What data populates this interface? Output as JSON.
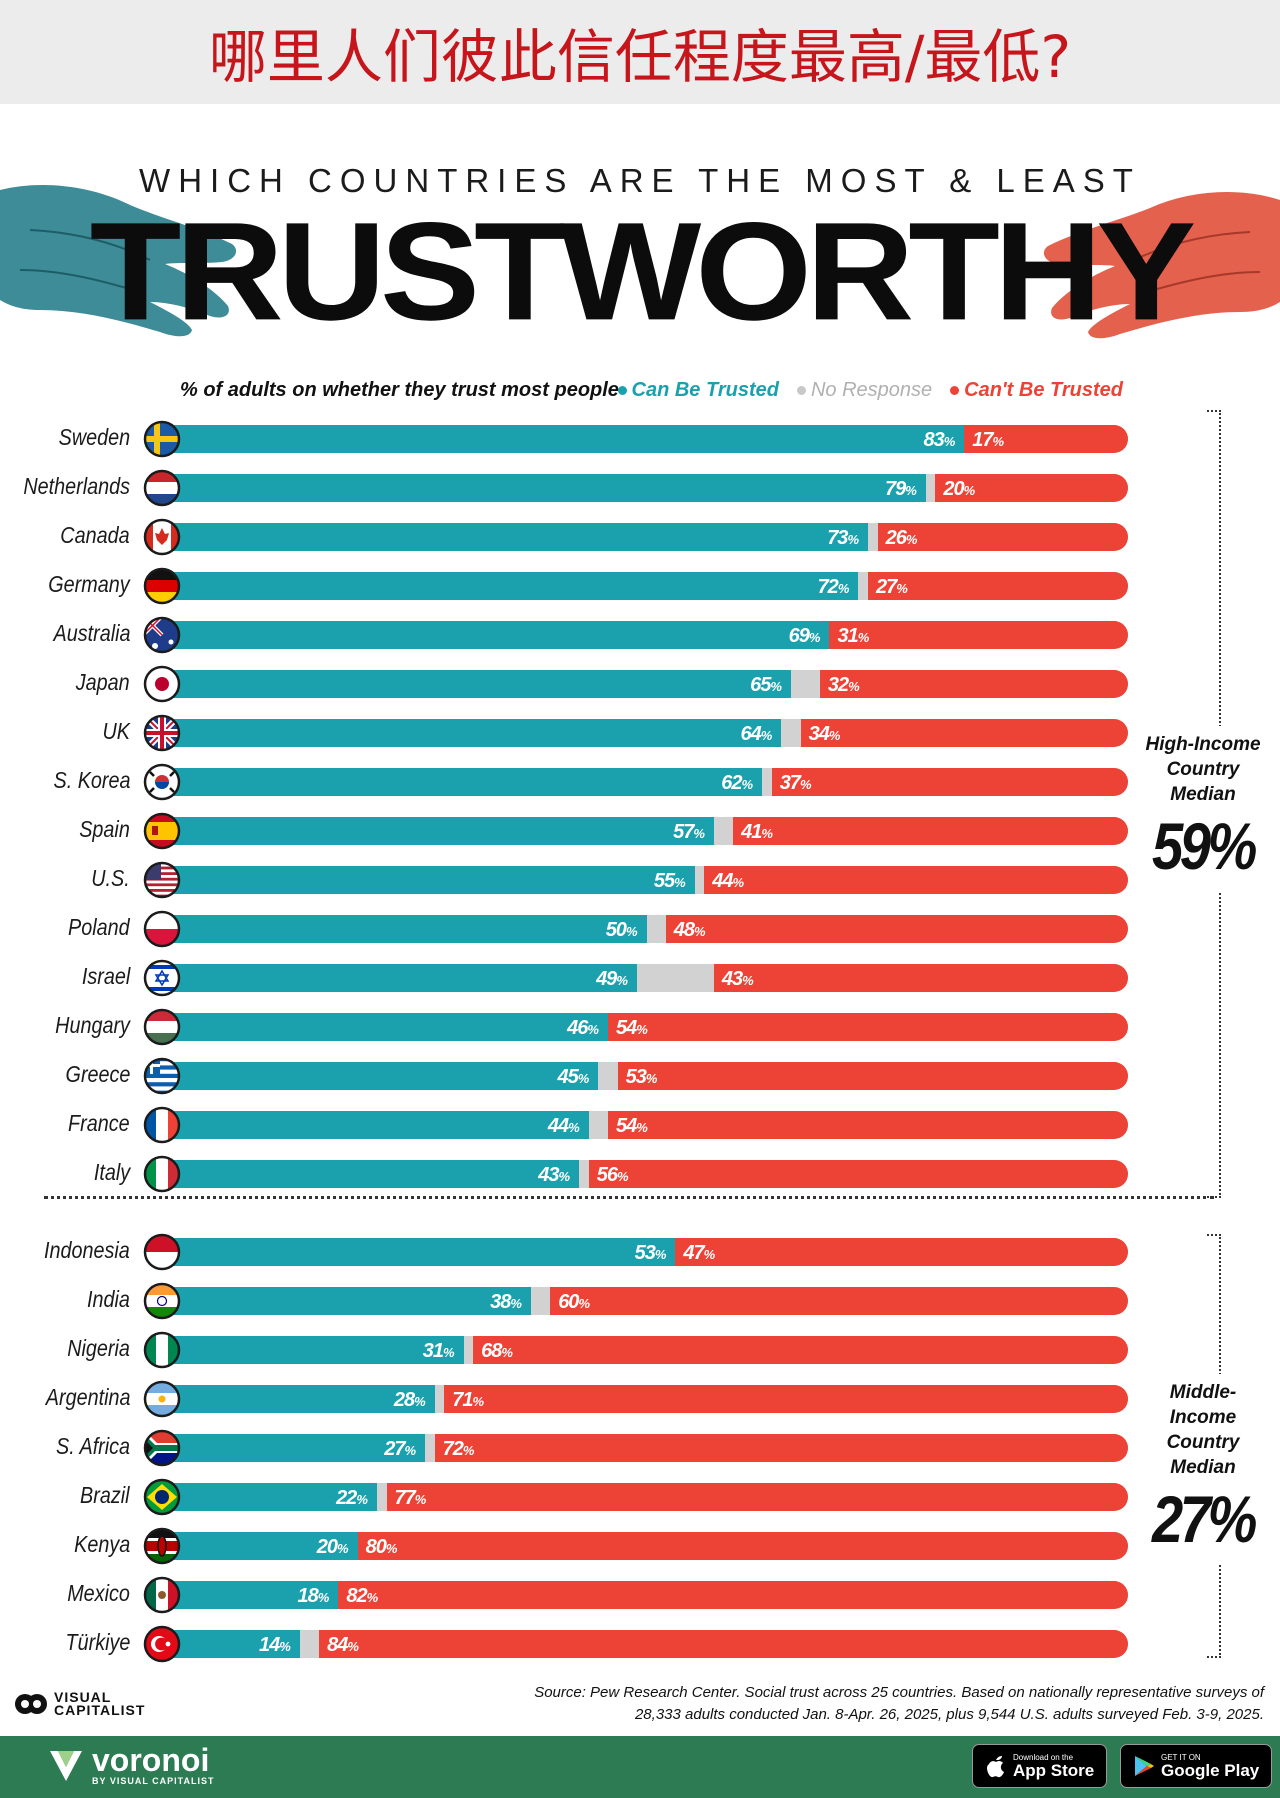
{
  "cn_title": "哪里人们彼此信任程度最高/最低?",
  "supertitle": "WHICH COUNTRIES ARE THE MOST & LEAST",
  "title": "TRUSTWORTHY",
  "subtitle": "% of adults on whether they trust most people",
  "legend": {
    "trusted": "Can Be Trusted",
    "no_response": "No Response",
    "not_trusted": "Can't Be Trusted"
  },
  "colors": {
    "trusted": "#1aa1ad",
    "no_response": "#d2d2d2",
    "not_trusted": "#ec4336"
  },
  "chart_data": {
    "type": "bar",
    "orientation": "horizontal-stacked",
    "unit": "%",
    "xlim": [
      0,
      100
    ],
    "groups": [
      {
        "name": "High-Income",
        "median_label": "High-Income Country Median",
        "median_value": "59%",
        "rows": [
          {
            "country": "Sweden",
            "flag": "sweden-flag",
            "trusted": 83,
            "not_trusted": 17
          },
          {
            "country": "Netherlands",
            "flag": "netherlands-flag",
            "trusted": 79,
            "not_trusted": 20
          },
          {
            "country": "Canada",
            "flag": "canada-flag",
            "trusted": 73,
            "not_trusted": 26
          },
          {
            "country": "Germany",
            "flag": "germany-flag",
            "trusted": 72,
            "not_trusted": 27
          },
          {
            "country": "Australia",
            "flag": "australia-flag",
            "trusted": 69,
            "not_trusted": 31
          },
          {
            "country": "Japan",
            "flag": "japan-flag",
            "trusted": 65,
            "not_trusted": 32
          },
          {
            "country": "UK",
            "flag": "uk-flag",
            "trusted": 64,
            "not_trusted": 34
          },
          {
            "country": "S. Korea",
            "flag": "south-korea-flag",
            "trusted": 62,
            "not_trusted": 37
          },
          {
            "country": "Spain",
            "flag": "spain-flag",
            "trusted": 57,
            "not_trusted": 41
          },
          {
            "country": "U.S.",
            "flag": "us-flag",
            "trusted": 55,
            "not_trusted": 44
          },
          {
            "country": "Poland",
            "flag": "poland-flag",
            "trusted": 50,
            "not_trusted": 48
          },
          {
            "country": "Israel",
            "flag": "israel-flag",
            "trusted": 49,
            "not_trusted": 43
          },
          {
            "country": "Hungary",
            "flag": "hungary-flag",
            "trusted": 46,
            "not_trusted": 54
          },
          {
            "country": "Greece",
            "flag": "greece-flag",
            "trusted": 45,
            "not_trusted": 53
          },
          {
            "country": "France",
            "flag": "france-flag",
            "trusted": 44,
            "not_trusted": 54
          },
          {
            "country": "Italy",
            "flag": "italy-flag",
            "trusted": 43,
            "not_trusted": 56
          }
        ]
      },
      {
        "name": "Middle-Income",
        "median_label": "Middle-Income Country Median",
        "median_value": "27%",
        "rows": [
          {
            "country": "Indonesia",
            "flag": "indonesia-flag",
            "trusted": 53,
            "not_trusted": 47
          },
          {
            "country": "India",
            "flag": "india-flag",
            "trusted": 38,
            "not_trusted": 60
          },
          {
            "country": "Nigeria",
            "flag": "nigeria-flag",
            "trusted": 31,
            "not_trusted": 68
          },
          {
            "country": "Argentina",
            "flag": "argentina-flag",
            "trusted": 28,
            "not_trusted": 71
          },
          {
            "country": "S. Africa",
            "flag": "south-africa-flag",
            "trusted": 27,
            "not_trusted": 72
          },
          {
            "country": "Brazil",
            "flag": "brazil-flag",
            "trusted": 22,
            "not_trusted": 77
          },
          {
            "country": "Kenya",
            "flag": "kenya-flag",
            "trusted": 20,
            "not_trusted": 80
          },
          {
            "country": "Mexico",
            "flag": "mexico-flag",
            "trusted": 18,
            "not_trusted": 82
          },
          {
            "country": "Türkiye",
            "flag": "turkiye-flag",
            "trusted": 14,
            "not_trusted": 84
          }
        ]
      }
    ]
  },
  "source": "Source: Pew Research Center. Social trust across 25 countries. Based on nationally representative surveys of 28,333 adults conducted Jan. 8-Apr. 26, 2025, plus 9,544 U.S. adults surveyed Feb. 3-9, 2025.",
  "brand": {
    "vc_line1": "VISUAL",
    "vc_line2": "CAPITALIST",
    "voronoi": "voronoi",
    "voronoi_by": "BY VISUAL CAPITALIST",
    "appstore_small": "Download on the",
    "appstore_big": "App Store",
    "googleplay_small": "GET IT ON",
    "googleplay_big": "Google Play"
  }
}
